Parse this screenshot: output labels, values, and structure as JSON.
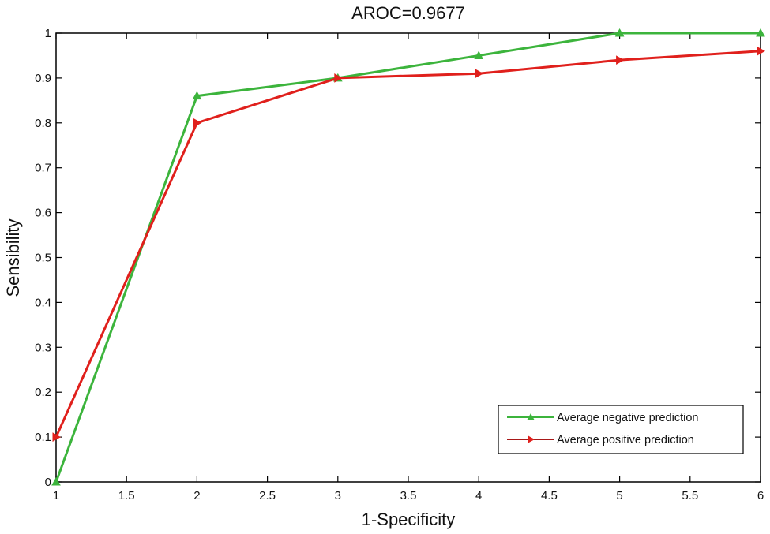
{
  "chart_data": {
    "type": "line",
    "title": "AROC=0.9677",
    "xlabel": "1-Specificity",
    "ylabel": "Sensibility",
    "xlim": [
      1,
      6
    ],
    "ylim": [
      0,
      1
    ],
    "x_ticks": [
      1,
      1.5,
      2,
      2.5,
      3,
      3.5,
      4,
      4.5,
      5,
      5.5,
      6
    ],
    "x_tick_labels": [
      "1",
      "1.5",
      "2",
      "2.5",
      "3",
      "3.5",
      "4",
      "4.5",
      "5",
      "5.5",
      "6"
    ],
    "y_ticks": [
      0,
      0.1,
      0.2,
      0.3,
      0.4,
      0.5,
      0.6,
      0.7,
      0.8,
      0.9,
      1
    ],
    "y_tick_labels": [
      "0",
      "0.1",
      "0.2",
      "0.3",
      "0.4",
      "0.5",
      "0.6",
      "0.7",
      "0.8",
      "0.9",
      "1"
    ],
    "grid": false,
    "legend_position": "lower right",
    "x": [
      1,
      2,
      3,
      4,
      5,
      6
    ],
    "series": [
      {
        "name": "Average negative prediction",
        "color": "#3cb43c",
        "marker": "triangle-up",
        "values": [
          0,
          0.86,
          0.9,
          0.95,
          1.0,
          1.0
        ]
      },
      {
        "name": "Average positive prediction",
        "color": "#e0201c",
        "marker": "triangle-right",
        "values": [
          0.1,
          0.8,
          0.9,
          0.91,
          0.94,
          0.96
        ]
      }
    ]
  }
}
